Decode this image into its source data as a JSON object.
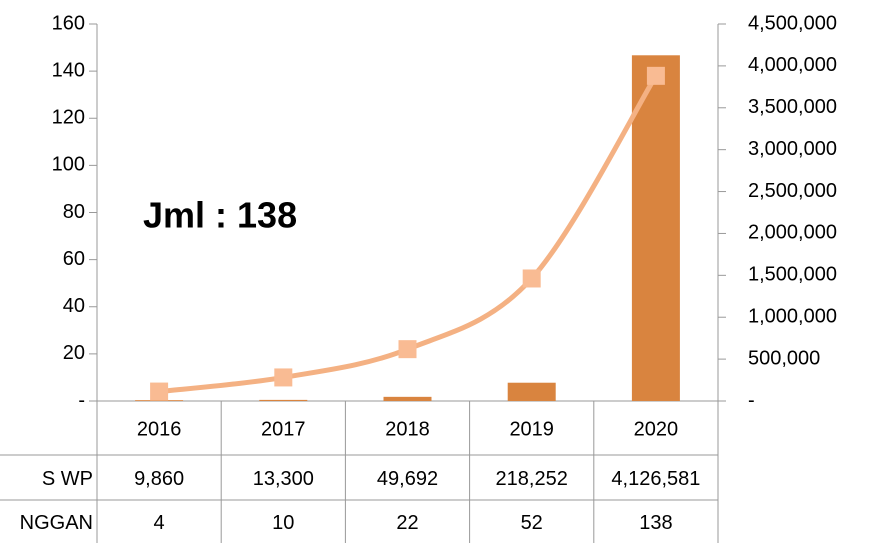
{
  "chart_data": {
    "type": "bar-line",
    "annotation": "Jml  : 138",
    "categories": [
      "2016",
      "2017",
      "2018",
      "2019",
      "2020"
    ],
    "series": [
      {
        "name": "S WP",
        "type": "bar",
        "axis": "y2",
        "color": "#d9843f",
        "values": [
          9860,
          13300,
          49692,
          218252,
          4126581
        ],
        "value_labels": [
          "9,860",
          "13,300",
          "49,692",
          "218,252",
          "4,126,581"
        ]
      },
      {
        "name": "NGGAN",
        "type": "line",
        "axis": "y",
        "color": "#f4b183",
        "marker_color": "#f9bb93",
        "values": [
          4,
          10,
          22,
          52,
          138
        ]
      }
    ],
    "ylim": [
      0,
      160
    ],
    "yticks": [
      {
        "value": 0,
        "label": "-"
      },
      20,
      40,
      60,
      80,
      100,
      120,
      140,
      160
    ],
    "y2lim": [
      0,
      4500000
    ],
    "y2ticks": [
      {
        "value": 0,
        "label": "-"
      },
      {
        "value": 500000,
        "label": "500,000"
      },
      {
        "value": 1000000,
        "label": "1,000,000"
      },
      {
        "value": 1500000,
        "label": "1,500,000"
      },
      {
        "value": 2000000,
        "label": "2,000,000"
      },
      {
        "value": 2500000,
        "label": "2,500,000"
      },
      {
        "value": 3000000,
        "label": "3,000,000"
      },
      {
        "value": 3500000,
        "label": "3,500,000"
      },
      {
        "value": 4000000,
        "label": "4,000,000"
      },
      {
        "value": 4500000,
        "label": "4,500,000"
      }
    ]
  }
}
